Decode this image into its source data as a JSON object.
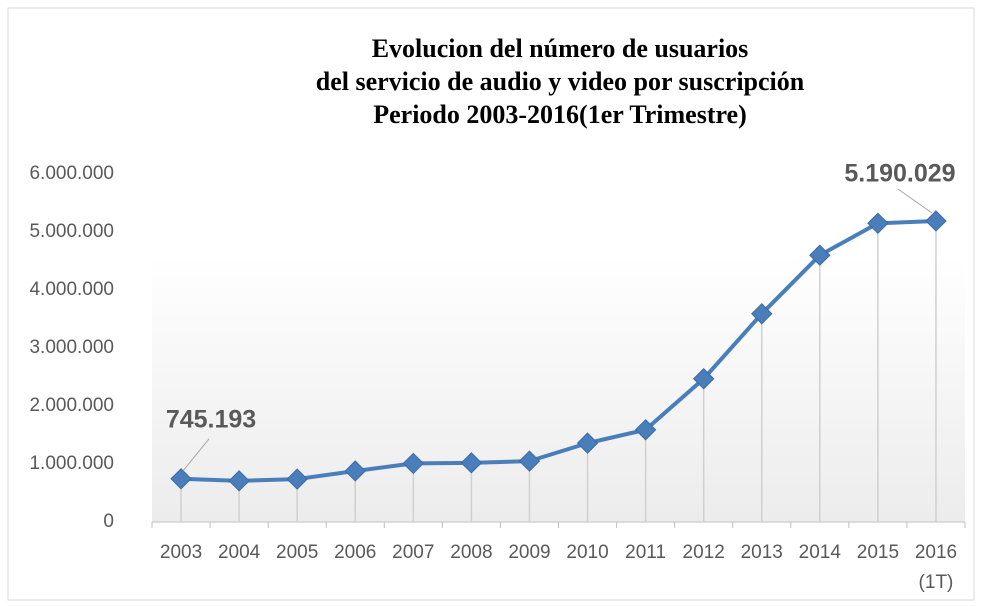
{
  "chart_data": {
    "type": "line",
    "title": [
      "Evolucion del número de usuarios",
      "del servicio de audio y video por suscripción",
      "Periodo 2003-2016(1er Trimestre)"
    ],
    "categories": [
      "2003",
      "2004",
      "2005",
      "2006",
      "2007",
      "2008",
      "2009",
      "2010",
      "2011",
      "2012",
      "2013",
      "2014",
      "2015",
      "2016\n(1T)"
    ],
    "series": [
      {
        "color": "#4a7ebb",
        "values": [
          745193,
          710000,
          740000,
          880000,
          1010000,
          1020000,
          1050000,
          1360000,
          1590000,
          2470000,
          3590000,
          4600000,
          5150000,
          5190029
        ],
        "value_labels": [
          "745.193",
          null,
          null,
          null,
          null,
          null,
          null,
          null,
          null,
          null,
          null,
          null,
          null,
          "5.190.029"
        ]
      }
    ],
    "ylim": [
      0,
      6000000
    ],
    "yticks": [
      0,
      {
        "value": 1000000,
        "label": "1.000.000"
      },
      {
        "value": 2000000,
        "label": "2.000.000"
      },
      {
        "value": 3000000,
        "label": "3.000.000"
      },
      {
        "value": 4000000,
        "label": "4.000.000"
      },
      {
        "value": 5000000,
        "label": "5.000.000"
      },
      {
        "value": 6000000,
        "label": "6.000.000"
      }
    ],
    "grid": false,
    "drop_lines": true
  }
}
